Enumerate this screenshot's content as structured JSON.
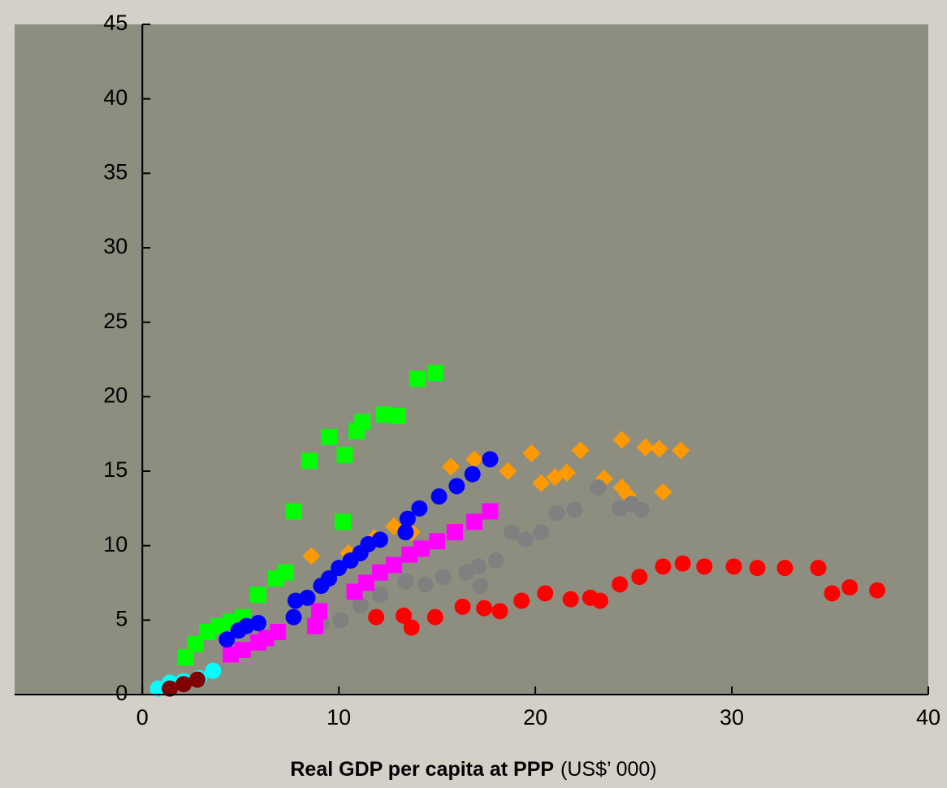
{
  "chart_data": {
    "type": "scatter",
    "x_label": "Real GDP per capita at PPP",
    "x_label_unit": "(US$’ 000)",
    "xlim": [
      -6.5,
      40
    ],
    "xticks": [
      0,
      10,
      20,
      30,
      40
    ],
    "ylim": [
      0,
      45
    ],
    "yticks": [
      0,
      5,
      10,
      15,
      20,
      25,
      30,
      35,
      40,
      45
    ],
    "grid": false,
    "series": [
      {
        "color": "#00ff00",
        "marker": "square",
        "x": [
          2.2,
          2.7,
          3.3,
          3.9,
          4.5,
          5.1,
          5.9,
          6.8,
          7.3,
          7.7,
          8.5,
          9.5,
          10.3,
          10.2,
          10.9,
          11.2,
          12.3,
          13.0,
          14.0,
          14.9
        ],
        "values": [
          2.5,
          3.4,
          4.2,
          4.6,
          4.9,
          5.2,
          6.7,
          7.8,
          8.2,
          12.3,
          15.7,
          17.3,
          16.1,
          11.6,
          17.7,
          18.3,
          18.8,
          18.7,
          21.2,
          21.6
        ]
      },
      {
        "color": "#ff9900",
        "marker": "diamond",
        "x": [
          8.6,
          10.5,
          11.8,
          12.8,
          13.7,
          15.7,
          16.9,
          18.6,
          19.8,
          20.3,
          21.0,
          21.6,
          22.3,
          23.5,
          24.4,
          24.4,
          25.6,
          26.3,
          27.4,
          26.5,
          24.7
        ],
        "values": [
          9.3,
          9.5,
          10.5,
          11.3,
          10.9,
          15.3,
          15.8,
          15.0,
          16.2,
          14.2,
          14.6,
          14.9,
          16.4,
          14.5,
          13.9,
          17.1,
          16.6,
          16.5,
          16.4,
          13.6,
          13.4
        ]
      },
      {
        "color": "#808080",
        "marker": "circle",
        "x": [
          9.1,
          10.1,
          11.1,
          12.1,
          13.4,
          14.4,
          15.3,
          16.5,
          17.1,
          17.2,
          18.0,
          18.8,
          19.5,
          20.3,
          21.1,
          22.0,
          23.2,
          24.3,
          24.9,
          25.4
        ],
        "values": [
          4.8,
          5.0,
          6.0,
          6.7,
          7.6,
          7.4,
          7.9,
          8.2,
          8.6,
          7.3,
          9.0,
          10.9,
          10.4,
          10.9,
          12.2,
          12.4,
          13.9,
          12.5,
          12.8,
          12.4
        ]
      },
      {
        "color": "#ff00ff",
        "marker": "square",
        "x": [
          4.5,
          5.1,
          5.9,
          6.3,
          6.9,
          9.0,
          10.8,
          11.4,
          12.1,
          12.8,
          13.6,
          14.2,
          15.0,
          15.9,
          16.9,
          17.7,
          8.8
        ],
        "values": [
          2.7,
          3.0,
          3.5,
          3.8,
          4.2,
          5.6,
          6.9,
          7.5,
          8.2,
          8.7,
          9.4,
          9.8,
          10.3,
          10.9,
          11.6,
          12.3,
          4.6
        ]
      },
      {
        "color": "#0000ff",
        "marker": "circle",
        "x": [
          4.3,
          4.9,
          5.3,
          5.9,
          7.8,
          8.4,
          9.1,
          9.5,
          10.0,
          10.6,
          11.1,
          11.5,
          12.1,
          13.4,
          13.5,
          14.1,
          15.1,
          16.0,
          16.8,
          17.7,
          7.7
        ],
        "values": [
          3.7,
          4.3,
          4.6,
          4.8,
          6.3,
          6.5,
          7.3,
          7.8,
          8.5,
          9.0,
          9.5,
          10.1,
          10.4,
          10.9,
          11.8,
          12.5,
          13.3,
          14.0,
          14.8,
          15.8,
          5.2
        ]
      },
      {
        "color": "#ff0000",
        "marker": "circle",
        "x": [
          11.9,
          13.3,
          13.7,
          14.9,
          16.3,
          17.4,
          18.2,
          19.3,
          20.5,
          21.8,
          22.8,
          23.3,
          24.3,
          25.3,
          26.5,
          27.5,
          28.6,
          30.1,
          31.3,
          32.7,
          34.4,
          35.1,
          36.0,
          37.4
        ],
        "values": [
          5.2,
          5.3,
          4.5,
          5.2,
          5.9,
          5.8,
          5.6,
          6.3,
          6.8,
          6.4,
          6.5,
          6.3,
          7.4,
          7.9,
          8.6,
          8.8,
          8.6,
          8.6,
          8.5,
          8.5,
          8.5,
          6.8,
          7.2,
          7.0
        ]
      },
      {
        "color": "#00ffff",
        "marker": "circle",
        "x": [
          0.8,
          1.4,
          2.1,
          2.9,
          3.6
        ],
        "values": [
          0.4,
          0.8,
          0.9,
          1.1,
          1.6
        ]
      },
      {
        "color": "#800000",
        "marker": "circle",
        "x": [
          1.4,
          2.1,
          2.8
        ],
        "values": [
          0.4,
          0.7,
          1.0
        ]
      }
    ]
  }
}
